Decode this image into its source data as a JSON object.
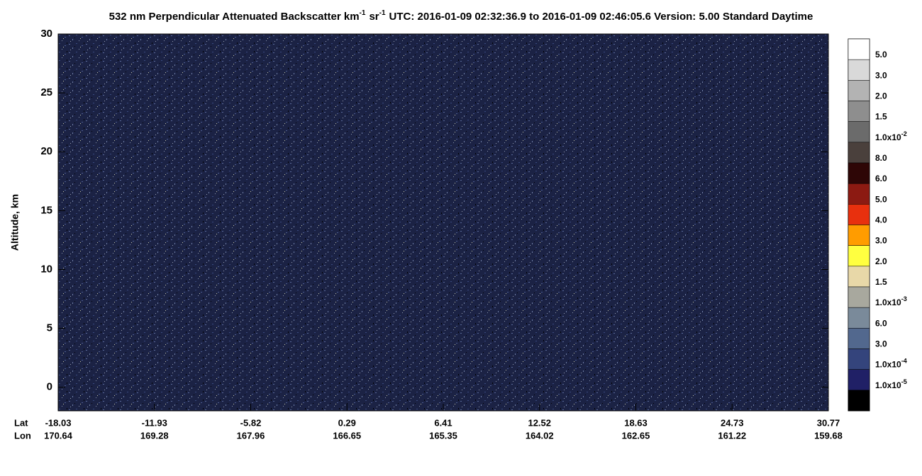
{
  "chart_data": {
    "type": "heatmap",
    "title_parts": [
      "532 nm Perpendicular Attenuated Backscatter km",
      "-1",
      "sr",
      "-1",
      "UTC: 2016-01-09 02:32:36.9 to 2016-01-09 02:46:05.6  Version: 5.00 Standard Daytime"
    ],
    "ylabel": "Altitude, km",
    "ylim": [
      -2,
      30
    ],
    "yticks": [
      0,
      5,
      10,
      15,
      20,
      25,
      30
    ],
    "x_row_labels": [
      "Lat",
      "Lon"
    ],
    "lat_labels": [
      "-18.03",
      "-11.93",
      "-5.82",
      "0.29",
      "6.41",
      "12.52",
      "18.63",
      "24.73",
      "30.77"
    ],
    "lon_labels": [
      "170.64",
      "169.28",
      "167.96",
      "166.65",
      "165.35",
      "164.02",
      "162.65",
      "161.22",
      "159.68"
    ],
    "colorbar": {
      "colors": [
        "#ffffff",
        "#d9d9d9",
        "#b3b3b3",
        "#8e8e8e",
        "#6b6b6b",
        "#4a403c",
        "#2e0606",
        "#8c1a12",
        "#e8300e",
        "#ff9c00",
        "#ffff40",
        "#e8d8a8",
        "#a8a89e",
        "#7a8a9a",
        "#52688e",
        "#34447c",
        "#202066",
        "#000000"
      ],
      "labels": [
        {
          "text": "5.0"
        },
        {
          "text": "3.0"
        },
        {
          "text": "2.0"
        },
        {
          "text": "1.5"
        },
        {
          "text": "1.0x10",
          "exp": "-2"
        },
        {
          "text": "8.0"
        },
        {
          "text": "6.0"
        },
        {
          "text": "5.0"
        },
        {
          "text": "4.0"
        },
        {
          "text": "3.0"
        },
        {
          "text": "2.0"
        },
        {
          "text": "1.5"
        },
        {
          "text": "1.0x10",
          "exp": "-3"
        },
        {
          "text": "6.0"
        },
        {
          "text": "3.0"
        },
        {
          "text": "1.0x10",
          "exp": "-4"
        },
        {
          "text": "1.0x10",
          "exp": "-5"
        }
      ]
    }
  }
}
